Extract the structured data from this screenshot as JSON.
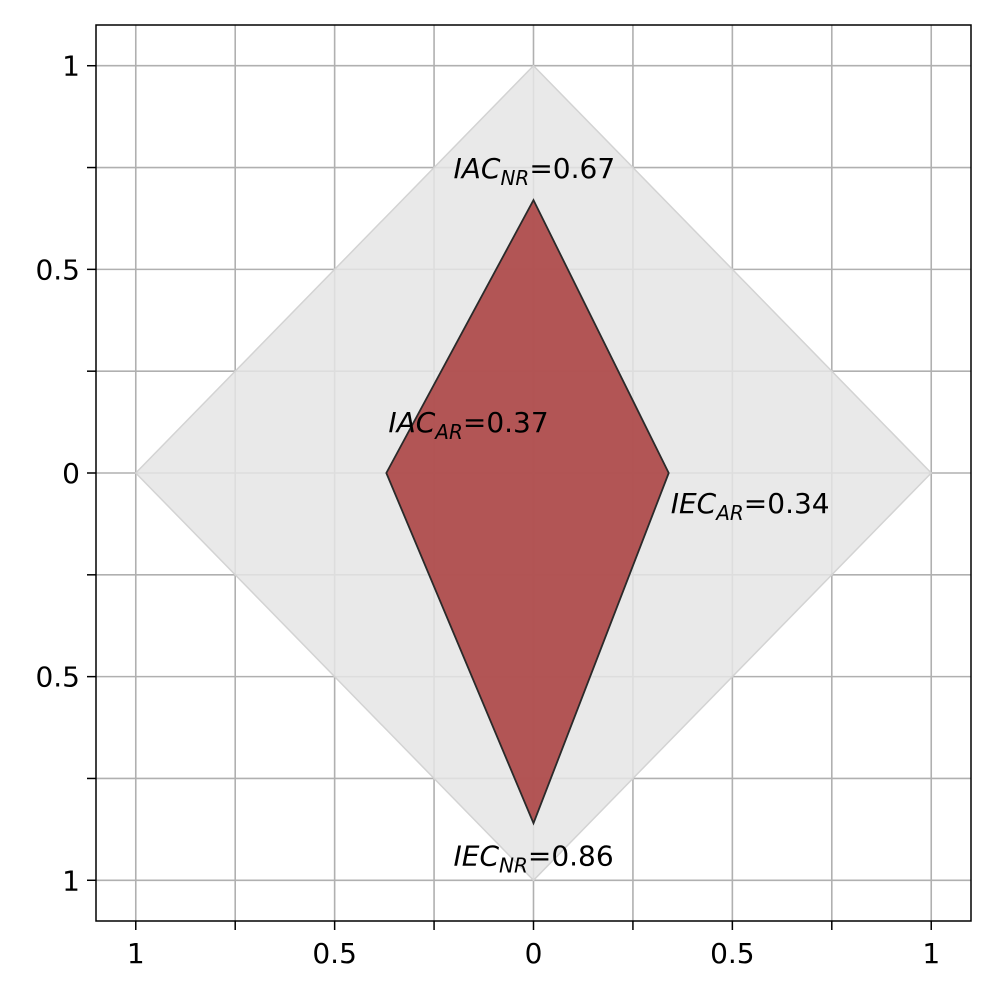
{
  "chart_data": {
    "type": "area",
    "title": "",
    "xlabel": "",
    "ylabel": "",
    "xlim": [
      -1.1,
      1.1
    ],
    "ylim": [
      -1.1,
      1.1
    ],
    "grid": true,
    "x_ticks": [
      {
        "value": -1,
        "label": "1"
      },
      {
        "value": -0.75,
        "label": ""
      },
      {
        "value": -0.5,
        "label": "0.5"
      },
      {
        "value": -0.25,
        "label": ""
      },
      {
        "value": 0,
        "label": "0"
      },
      {
        "value": 0.25,
        "label": ""
      },
      {
        "value": 0.5,
        "label": "0.5"
      },
      {
        "value": 0.75,
        "label": ""
      },
      {
        "value": 1,
        "label": "1"
      }
    ],
    "y_ticks": [
      {
        "value": 1,
        "label": "1"
      },
      {
        "value": 0.75,
        "label": ""
      },
      {
        "value": 0.5,
        "label": "0.5"
      },
      {
        "value": 0.25,
        "label": ""
      },
      {
        "value": 0,
        "label": "0"
      },
      {
        "value": -0.25,
        "label": ""
      },
      {
        "value": -0.5,
        "label": "0.5"
      },
      {
        "value": -0.75,
        "label": ""
      },
      {
        "value": -1,
        "label": "1"
      }
    ],
    "reference_region": {
      "vertices": [
        [
          0,
          1
        ],
        [
          1,
          0
        ],
        [
          0,
          -1
        ],
        [
          -1,
          0
        ]
      ],
      "fill": "#e5e5e5",
      "stroke": "#d3d3d3"
    },
    "polygon": {
      "fill": "#b05050",
      "stroke": "#2a2a2a",
      "points": [
        {
          "name": "IAC",
          "sub": "NR",
          "value": 0.67,
          "x": 0,
          "y": 0.67
        },
        {
          "name": "IEC",
          "sub": "AR",
          "value": 0.34,
          "x": 0.34,
          "y": 0
        },
        {
          "name": "IEC",
          "sub": "NR",
          "value": 0.86,
          "x": 0,
          "y": -0.86
        },
        {
          "name": "IAC",
          "sub": "AR",
          "value": 0.37,
          "x": -0.37,
          "y": 0
        }
      ]
    }
  }
}
